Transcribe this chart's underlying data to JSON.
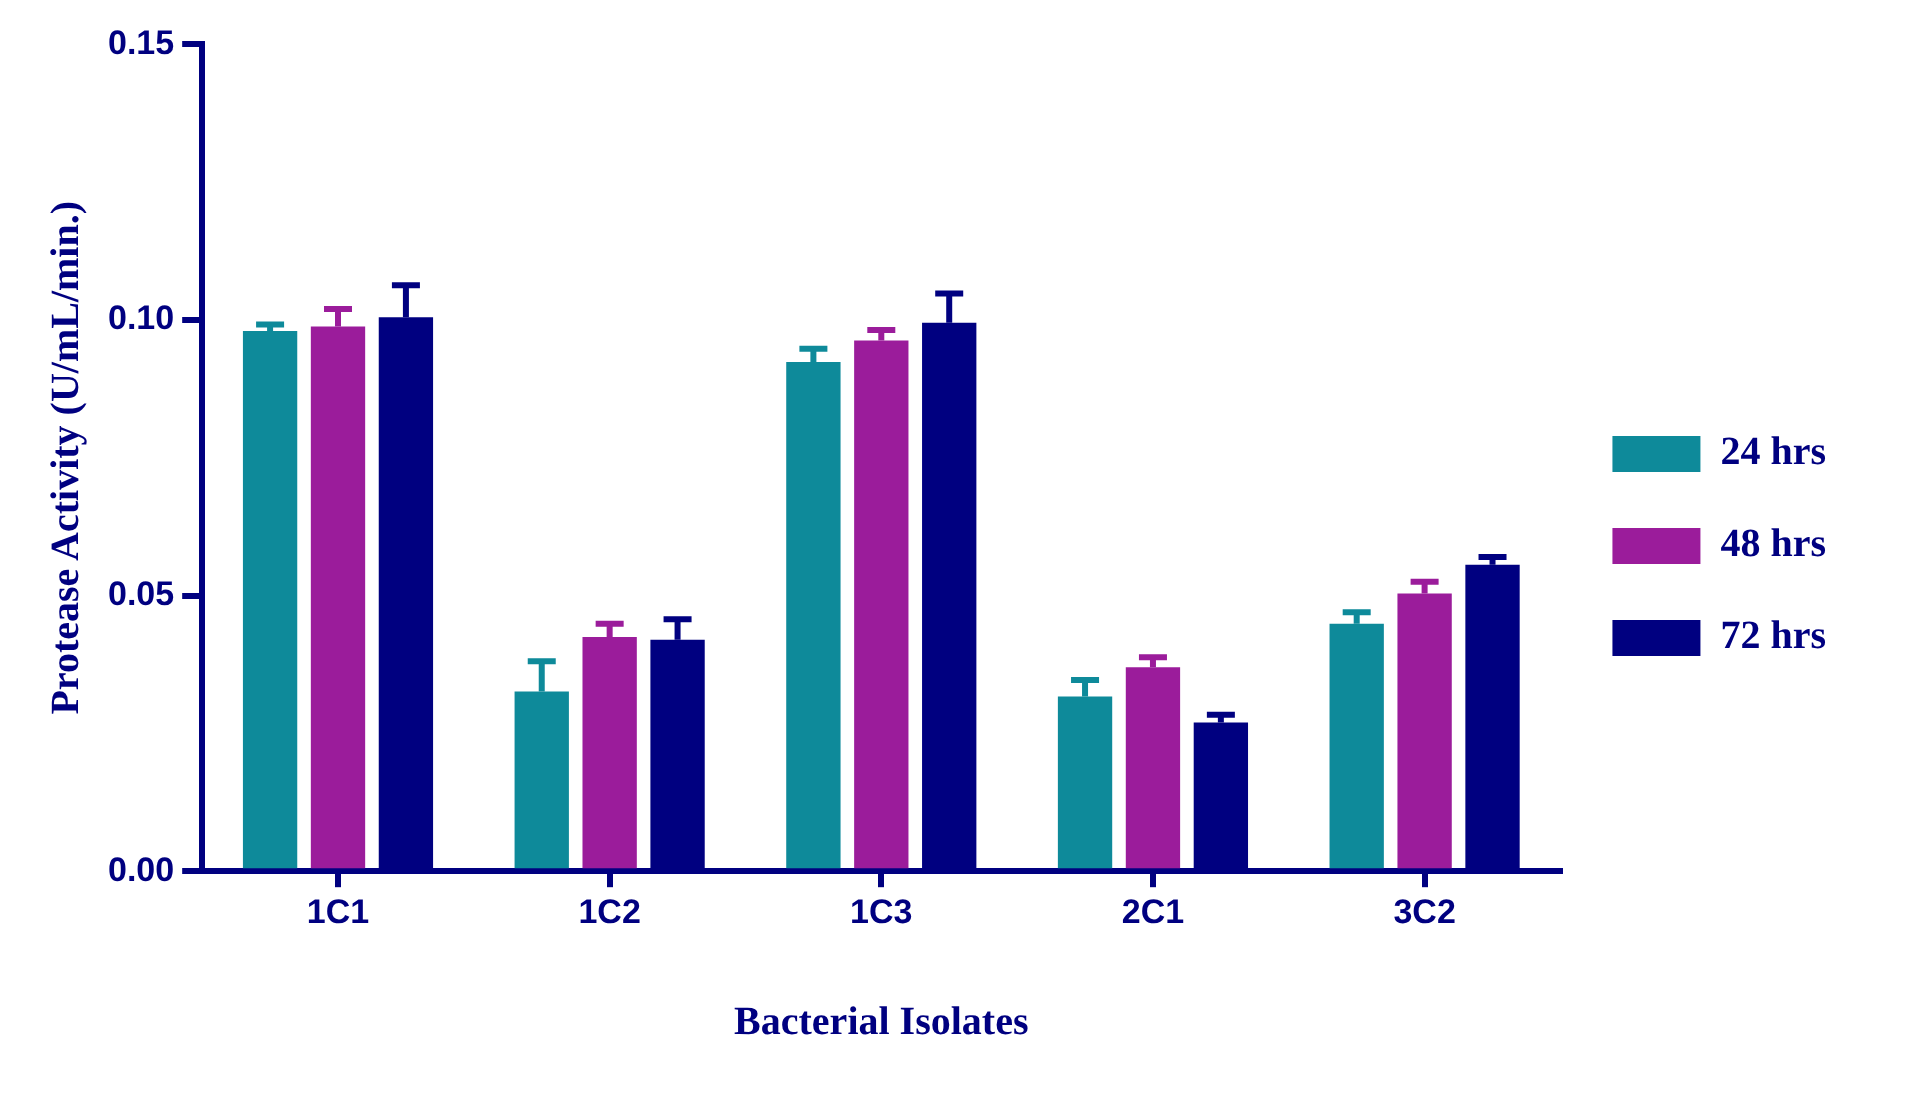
{
  "chart_data": {
    "type": "bar",
    "xlabel": "Bacterial Isolates",
    "ylabel": "Protease Activity (U/mL/min.)",
    "categories": [
      "1C1",
      "1C2",
      "1C3",
      "2C1",
      "3C2"
    ],
    "series": [
      {
        "name": "24 hrs",
        "color": "#0e8a9a",
        "values": [
          0.098,
          0.0326,
          0.0924,
          0.0317,
          0.0449
        ],
        "errors": [
          0.0012,
          0.0055,
          0.0024,
          0.003,
          0.0021
        ]
      },
      {
        "name": "48 hrs",
        "color": "#9b1c9b",
        "values": [
          0.0988,
          0.0425,
          0.0963,
          0.037,
          0.0504
        ],
        "errors": [
          0.0032,
          0.0024,
          0.0019,
          0.0018,
          0.0021
        ]
      },
      {
        "name": "72 hrs",
        "color": "#000080",
        "values": [
          0.1005,
          0.042,
          0.0995,
          0.027,
          0.0556
        ],
        "errors": [
          0.0058,
          0.0037,
          0.0053,
          0.0014,
          0.0014
        ]
      }
    ],
    "ylim": [
      0,
      0.15
    ],
    "yticks": [
      {
        "value": 0,
        "label": "0.00"
      },
      {
        "value": 0.05,
        "label": "0.05"
      },
      {
        "value": 0.1,
        "label": "0.10"
      },
      {
        "value": 0.15,
        "label": "0.15"
      }
    ],
    "grid": false,
    "legend": "right"
  }
}
